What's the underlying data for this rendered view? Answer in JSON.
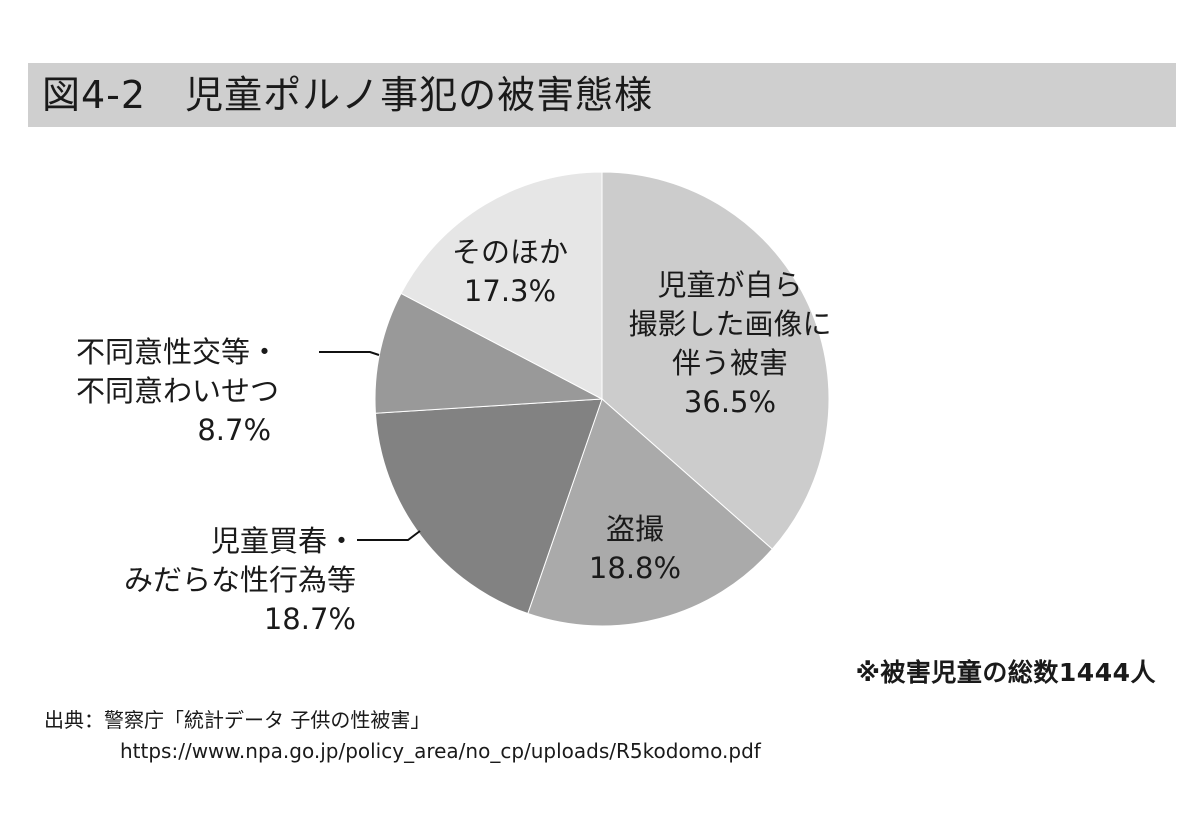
{
  "header": {
    "title": "図4-2　児童ポルノ事犯の被害態様"
  },
  "chart_data": {
    "type": "pie",
    "title": "図4-2　児童ポルノ事犯の被害態様",
    "start_angle": "12 o'clock",
    "direction": "clockwise",
    "categories": [
      "児童が自ら撮影した画像に伴う被害",
      "盗撮",
      "児童買春・みだらな性行為等",
      "不同意性交等・不同意わいせつ",
      "そのほか"
    ],
    "values": [
      36.5,
      18.8,
      18.7,
      8.7,
      17.3
    ],
    "unit": "%",
    "colors": [
      "#cccccc",
      "#aaaaaa",
      "#828282",
      "#999999",
      "#e6e6e6"
    ],
    "annotations": [
      "※被害児童の総数1444人"
    ],
    "total_victims": 1444
  },
  "labels": {
    "self_photo": {
      "line1": "児童が自ら",
      "line2": "撮影した画像に",
      "line3": "伴う被害",
      "pct": "36.5%"
    },
    "voyeur": {
      "line1": "盗撮",
      "pct": "18.8%"
    },
    "prostitution": {
      "line1": "児童買春・",
      "line2": "みだらな性行為等",
      "pct": "18.7%"
    },
    "nonconsent": {
      "line1": "不同意性交等・",
      "line2": "不同意わいせつ",
      "pct": "8.7%"
    },
    "other": {
      "line1": "そのほか",
      "pct": "17.3%"
    }
  },
  "footer": {
    "note": "※被害児童の総数1444人",
    "source": "出典：警察庁「統計データ 子供の性被害」",
    "url": "https://www.npa.go.jp/policy_area/no_cp/uploads/R5kodomo.pdf"
  }
}
